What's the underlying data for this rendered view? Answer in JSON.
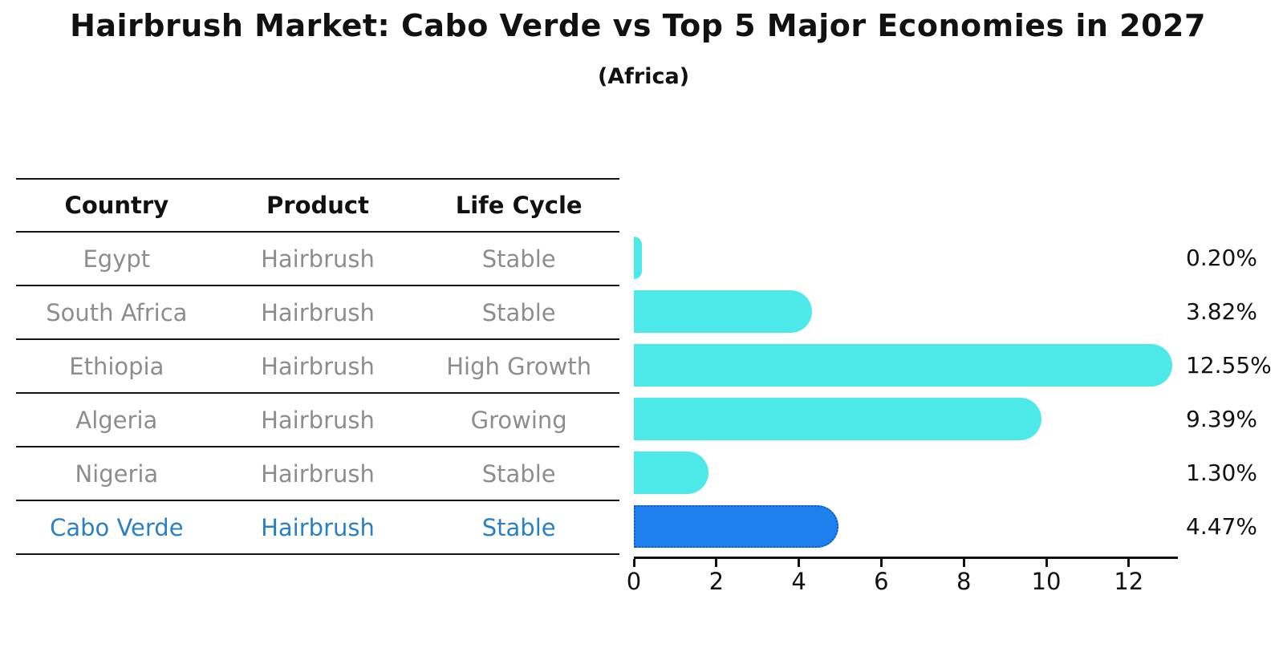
{
  "title": "Hairbrush Market: Cabo Verde vs Top 5 Major Economies in 2027",
  "subtitle": "(Africa)",
  "table": {
    "headers": [
      "Country",
      "Product",
      "Life Cycle"
    ],
    "rows": [
      {
        "country": "Egypt",
        "product": "Hairbrush",
        "life_cycle": "Stable",
        "highlight": false
      },
      {
        "country": "South Africa",
        "product": "Hairbrush",
        "life_cycle": "Stable",
        "highlight": false
      },
      {
        "country": "Ethiopia",
        "product": "Hairbrush",
        "life_cycle": "High Growth",
        "highlight": false
      },
      {
        "country": "Algeria",
        "product": "Hairbrush",
        "life_cycle": "Growing",
        "highlight": false
      },
      {
        "country": "Nigeria",
        "product": "Hairbrush",
        "life_cycle": "Stable",
        "highlight": false
      },
      {
        "country": "Cabo Verde",
        "product": "Hairbrush",
        "life_cycle": "Stable",
        "highlight": true
      }
    ]
  },
  "chart_data": {
    "type": "bar",
    "orientation": "horizontal",
    "title": "Hairbrush Market: Cabo Verde vs Top 5 Major Economies in 2027",
    "subtitle": "(Africa)",
    "categories": [
      "Egypt",
      "South Africa",
      "Ethiopia",
      "Algeria",
      "Nigeria",
      "Cabo Verde"
    ],
    "values": [
      0.2,
      3.82,
      12.55,
      9.39,
      1.3,
      4.47
    ],
    "value_labels": [
      "0.20%",
      "3.82%",
      "12.55%",
      "9.39%",
      "1.30%",
      "4.47%"
    ],
    "xticks": [
      0,
      2,
      4,
      6,
      8,
      10,
      12
    ],
    "xlim": [
      0,
      13.2
    ],
    "grid": false,
    "legend": "none",
    "highlight_category": "Cabo Verde",
    "colors": {
      "bar_default": "#4DE9E9",
      "bar_highlight": "#1E80EC",
      "bar_highlight_border": "#1A55CC",
      "table_text": "#8D8D8D",
      "highlight_text": "#2980C4",
      "axis": "#111111"
    }
  }
}
